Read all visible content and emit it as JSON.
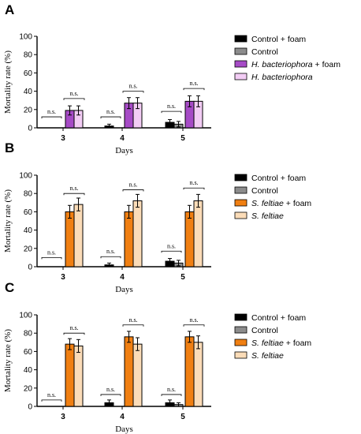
{
  "chart_data": [
    {
      "panel": "A",
      "type": "bar",
      "categories": [
        "3",
        "4",
        "5"
      ],
      "xlabel": "Days",
      "ylabel": "Mortality rate (%)",
      "ylim": [
        0,
        100
      ],
      "yticks": [
        "0",
        "20",
        "40",
        "60",
        "80",
        "100"
      ],
      "series": [
        {
          "name": "Control + foam",
          "color": "#000000",
          "values": [
            0,
            2,
            6
          ],
          "errors": [
            0,
            2,
            3
          ]
        },
        {
          "name": "Control",
          "color": "#8c8c8c",
          "values": [
            0,
            0,
            4
          ],
          "errors": [
            0,
            0,
            3
          ]
        },
        {
          "name": "H. bacteriophora + foam",
          "color": "#a64bc6",
          "values": [
            19,
            27,
            29
          ],
          "errors": [
            5,
            6,
            6
          ]
        },
        {
          "name": "H. bacteriophora",
          "color": "#f3cdf5",
          "values": [
            19,
            27,
            29
          ],
          "errors": [
            5,
            6,
            6
          ]
        }
      ],
      "legend_parts": [
        {
          "plain": "Control + foam",
          "italic": "",
          "rest": ""
        },
        {
          "plain": "Control",
          "italic": "",
          "rest": ""
        },
        {
          "plain": "",
          "italic": "H. bacteriophora",
          "rest": " + foam"
        },
        {
          "plain": "",
          "italic": "H. bacteriophora",
          "rest": ""
        }
      ],
      "annotations": [
        {
          "label": "n.s.",
          "day": 0,
          "pair": "control",
          "y": 12
        },
        {
          "label": "n.s.",
          "day": 0,
          "pair": "treat",
          "y": 32
        },
        {
          "label": "n.s.",
          "day": 1,
          "pair": "control",
          "y": 12
        },
        {
          "label": "n.s.",
          "day": 1,
          "pair": "treat",
          "y": 40
        },
        {
          "label": "n.s.",
          "day": 2,
          "pair": "control",
          "y": 18
        },
        {
          "label": "n.s.",
          "day": 2,
          "pair": "treat",
          "y": 43
        }
      ]
    },
    {
      "panel": "B",
      "type": "bar",
      "categories": [
        "3",
        "4",
        "5"
      ],
      "xlabel": "Days",
      "ylabel": "Mortality rate (%)",
      "ylim": [
        0,
        100
      ],
      "yticks": [
        "0",
        "20",
        "40",
        "60",
        "80",
        "100"
      ],
      "series": [
        {
          "name": "Control + foam",
          "color": "#000000",
          "values": [
            0,
            2,
            6
          ],
          "errors": [
            0,
            2,
            3
          ]
        },
        {
          "name": "Control",
          "color": "#8c8c8c",
          "values": [
            0,
            0,
            4
          ],
          "errors": [
            0,
            0,
            3
          ]
        },
        {
          "name": "S. feltiae + foam",
          "color": "#f07f12",
          "values": [
            60,
            60,
            60
          ],
          "errors": [
            7,
            7,
            7
          ]
        },
        {
          "name": "S. feltiae",
          "color": "#fbdcb8",
          "values": [
            68,
            72,
            72
          ],
          "errors": [
            7,
            7,
            7
          ]
        }
      ],
      "legend_parts": [
        {
          "plain": "Control + foam",
          "italic": "",
          "rest": ""
        },
        {
          "plain": "Control",
          "italic": "",
          "rest": ""
        },
        {
          "plain": "",
          "italic": "S. feltiae",
          "rest": " + foam"
        },
        {
          "plain": "",
          "italic": "S. feltiae",
          "rest": ""
        }
      ],
      "annotations": [
        {
          "label": "n.s.",
          "day": 0,
          "pair": "control",
          "y": 10
        },
        {
          "label": "n.s.",
          "day": 0,
          "pair": "treat",
          "y": 80
        },
        {
          "label": "n.s.",
          "day": 1,
          "pair": "control",
          "y": 11
        },
        {
          "label": "n.s.",
          "day": 1,
          "pair": "treat",
          "y": 84
        },
        {
          "label": "n.s.",
          "day": 2,
          "pair": "control",
          "y": 17
        },
        {
          "label": "n.s.",
          "day": 2,
          "pair": "treat",
          "y": 86
        }
      ]
    },
    {
      "panel": "C",
      "type": "bar",
      "categories": [
        "3",
        "4",
        "5"
      ],
      "xlabel": "Days",
      "ylabel": "Mortality rate (%)",
      "ylim": [
        0,
        100
      ],
      "yticks": [
        "0",
        "20",
        "40",
        "60",
        "80",
        "100"
      ],
      "series": [
        {
          "name": "Control + foam",
          "color": "#000000",
          "values": [
            0,
            4,
            4
          ],
          "errors": [
            0,
            3,
            3
          ]
        },
        {
          "name": "Control",
          "color": "#8c8c8c",
          "values": [
            0,
            0,
            2
          ],
          "errors": [
            0,
            0,
            2
          ]
        },
        {
          "name": "S. feltiae + foam",
          "color": "#f07f12",
          "values": [
            68,
            76,
            76
          ],
          "errors": [
            6,
            6,
            6
          ]
        },
        {
          "name": "S. feltiae",
          "color": "#fbdcb8",
          "values": [
            66,
            68,
            70
          ],
          "errors": [
            7,
            7,
            7
          ]
        }
      ],
      "legend_parts": [
        {
          "plain": "Control + foam",
          "italic": "",
          "rest": ""
        },
        {
          "plain": "Control",
          "italic": "",
          "rest": ""
        },
        {
          "plain": "",
          "italic": "S. feltiae",
          "rest": " + foam"
        },
        {
          "plain": "",
          "italic": "S. feltiae",
          "rest": ""
        }
      ],
      "annotations": [
        {
          "label": "n.s.",
          "day": 0,
          "pair": "control",
          "y": 7
        },
        {
          "label": "n.s.",
          "day": 0,
          "pair": "treat",
          "y": 80
        },
        {
          "label": "n.s.",
          "day": 1,
          "pair": "control",
          "y": 13
        },
        {
          "label": "n.s.",
          "day": 1,
          "pair": "treat",
          "y": 89
        },
        {
          "label": "n.s.",
          "day": 2,
          "pair": "control",
          "y": 13
        },
        {
          "label": "n.s.",
          "day": 2,
          "pair": "treat",
          "y": 89
        }
      ]
    }
  ]
}
